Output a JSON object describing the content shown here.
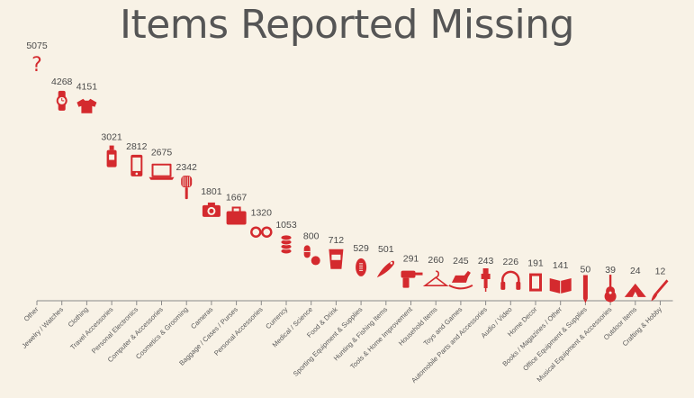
{
  "chart_data": {
    "type": "scatter",
    "title": "Items Reported Missing",
    "xlabel": "",
    "ylabel": "",
    "ylim": [
      0,
      5075
    ],
    "grid": false,
    "legend": "none",
    "marker_color": "#d42a2e",
    "points": [
      {
        "label": "Other",
        "value": 5075,
        "icon": "question-mark-icon"
      },
      {
        "label": "Jewelry / Watches",
        "value": 4268,
        "icon": "watch-icon"
      },
      {
        "label": "Clothing",
        "value": 4151,
        "icon": "shirt-icon"
      },
      {
        "label": "Travel Accessories",
        "value": 3021,
        "icon": "bottle-icon"
      },
      {
        "label": "Personal Electronics",
        "value": 2812,
        "icon": "phone-icon"
      },
      {
        "label": "Computer & Accessories",
        "value": 2675,
        "icon": "laptop-icon"
      },
      {
        "label": "Cosmetics & Grooming",
        "value": 2342,
        "icon": "brush-icon"
      },
      {
        "label": "Cameras",
        "value": 1801,
        "icon": "camera-icon"
      },
      {
        "label": "Baggage / Cases / Purses",
        "value": 1667,
        "icon": "suitcase-icon"
      },
      {
        "label": "Personal Accessories",
        "value": 1320,
        "icon": "glasses-icon"
      },
      {
        "label": "Currency",
        "value": 1053,
        "icon": "coins-icon"
      },
      {
        "label": "Medical / Science",
        "value": 800,
        "icon": "pills-icon"
      },
      {
        "label": "Food & Drink",
        "value": 712,
        "icon": "cup-icon"
      },
      {
        "label": "Sporting Equipment & Supplies",
        "value": 529,
        "icon": "football-icon"
      },
      {
        "label": "Hunting & Fishing Items",
        "value": 501,
        "icon": "fishing-lure-icon"
      },
      {
        "label": "Tools & Home Improvement",
        "value": 291,
        "icon": "drill-icon"
      },
      {
        "label": "Household Items",
        "value": 260,
        "icon": "hanger-icon"
      },
      {
        "label": "Toys and Games",
        "value": 245,
        "icon": "rocking-horse-icon"
      },
      {
        "label": "Automobile Parts and Accessories",
        "value": 243,
        "icon": "spark-plug-icon"
      },
      {
        "label": "Audio / Video",
        "value": 226,
        "icon": "headphones-icon"
      },
      {
        "label": "Home Decor",
        "value": 191,
        "icon": "picture-frame-icon"
      },
      {
        "label": "Books / Magazines / Other",
        "value": 141,
        "icon": "book-icon"
      },
      {
        "label": "Office Equipment & Supplies",
        "value": 50,
        "icon": "pencil-icon"
      },
      {
        "label": "Musical Equipment & Accessories",
        "value": 39,
        "icon": "guitar-icon"
      },
      {
        "label": "Outdoor Items",
        "value": 24,
        "icon": "tent-icon"
      },
      {
        "label": "Crafting & Hobby",
        "value": 12,
        "icon": "paintbrush-icon"
      }
    ]
  }
}
